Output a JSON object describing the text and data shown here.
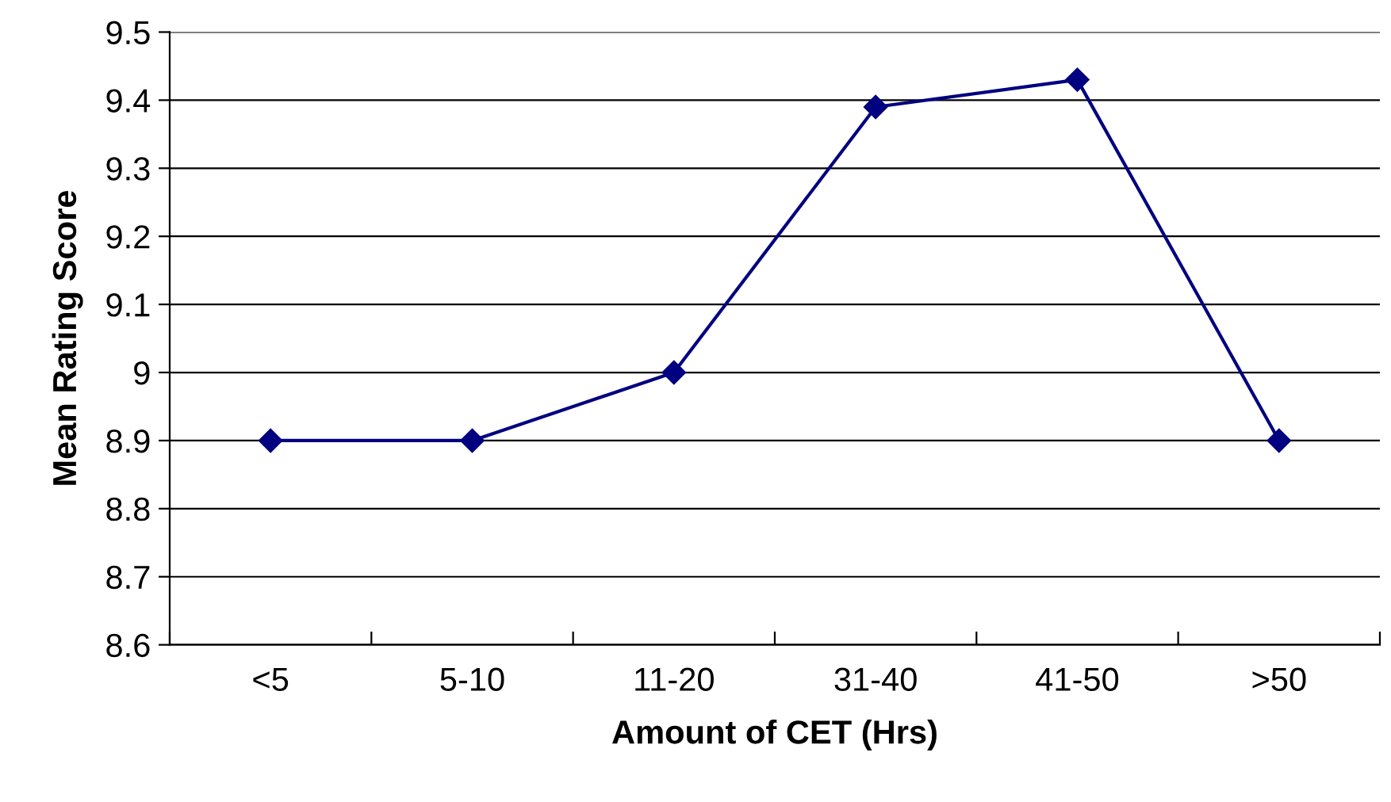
{
  "chart_data": {
    "type": "line",
    "xlabel": "Amount of CET (Hrs)",
    "ylabel": "Mean Rating Score",
    "categories": [
      "<5",
      "5-10",
      "11-20",
      "31-40",
      "41-50",
      ">50"
    ],
    "series": [
      {
        "color": "#000080",
        "values": [
          8.9,
          8.9,
          9.0,
          9.39,
          9.43,
          8.9
        ]
      }
    ],
    "ylim": [
      8.6,
      9.5
    ],
    "yticks": [
      8.6,
      8.7,
      8.8,
      8.9,
      9,
      9.1,
      9.2,
      9.3,
      9.4,
      9.5
    ],
    "grid": "y",
    "legend": false,
    "marker": "diamond",
    "line_style": "solid"
  }
}
